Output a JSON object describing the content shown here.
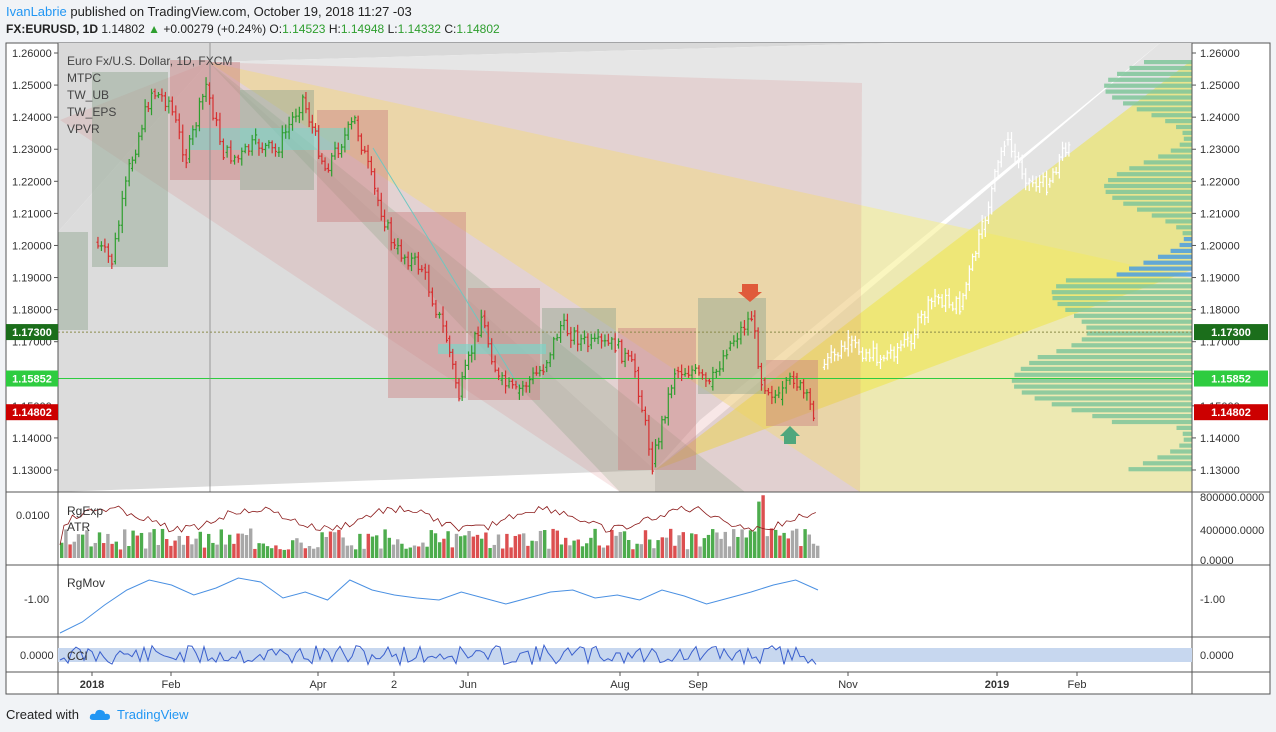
{
  "header": {
    "author": "IvanLabrie",
    "published": "published on TradingView.com, October 19, 2018 11:27 -03",
    "symbol": "FX:EURUSD, 1D",
    "last": "1.14802",
    "change": "+0.00279 (+0.24%)",
    "o_label": "O:",
    "o": "1.14523",
    "h_label": "H:",
    "h": "1.14948",
    "l_label": "L:",
    "l": "1.14332",
    "c_label": "C:",
    "c": "1.14802"
  },
  "legend": [
    "Euro Fx/U.S. Dollar, 1D, FXCM",
    "MTPC",
    "TW_UB",
    "TW_EPS",
    "VPVR"
  ],
  "footer": {
    "created_with": "Created with",
    "brand": "TradingView"
  },
  "colors": {
    "up": "#2e9e2e",
    "down": "#d63031",
    "blue": "#2196f3",
    "price_green": "#2ecc40",
    "price_red": "#cc0000",
    "price_dark": "#1b6e1b"
  },
  "chart_data": {
    "type": "candlestick",
    "symbol": "EURUSD",
    "timeframe": "1D",
    "price_axis": {
      "ticks": [
        "1.26000",
        "1.25000",
        "1.24000",
        "1.23000",
        "1.22000",
        "1.21000",
        "1.20000",
        "1.19000",
        "1.18000",
        "1.17000",
        "1.16000",
        "1.15000",
        "1.14000",
        "1.13000"
      ],
      "ylim": [
        1.125,
        1.262
      ]
    },
    "price_labels": [
      {
        "value": 1.173,
        "text": "1.17300",
        "kind": "dark"
      },
      {
        "value": 1.15852,
        "text": "1.15852",
        "kind": "green"
      },
      {
        "value": 1.14802,
        "text": "1.14802",
        "kind": "red"
      }
    ],
    "time_axis": [
      "2018",
      "Feb",
      "Apr",
      "2",
      "Jun",
      "Aug",
      "Sep",
      "Nov",
      "2019",
      "Feb"
    ],
    "ohlc_path": [
      [
        "2018-01-02",
        1.201
      ],
      [
        "2018-01-09",
        1.195
      ],
      [
        "2018-01-16",
        1.224
      ],
      [
        "2018-01-25",
        1.248
      ],
      [
        "2018-02-01",
        1.245
      ],
      [
        "2018-02-08",
        1.227
      ],
      [
        "2018-02-16",
        1.25
      ],
      [
        "2018-02-23",
        1.229
      ],
      [
        "2018-03-01",
        1.227
      ],
      [
        "2018-03-08",
        1.232
      ],
      [
        "2018-03-16",
        1.229
      ],
      [
        "2018-03-27",
        1.246
      ],
      [
        "2018-04-05",
        1.224
      ],
      [
        "2018-04-17",
        1.239
      ],
      [
        "2018-04-25",
        1.217
      ],
      [
        "2018-05-03",
        1.199
      ],
      [
        "2018-05-14",
        1.193
      ],
      [
        "2018-05-24",
        1.171
      ],
      [
        "2018-05-29",
        1.153
      ],
      [
        "2018-06-07",
        1.178
      ],
      [
        "2018-06-14",
        1.158
      ],
      [
        "2018-06-21",
        1.154
      ],
      [
        "2018-07-02",
        1.162
      ],
      [
        "2018-07-09",
        1.175
      ],
      [
        "2018-07-20",
        1.169
      ],
      [
        "2018-07-31",
        1.169
      ],
      [
        "2018-08-08",
        1.161
      ],
      [
        "2018-08-15",
        1.132
      ],
      [
        "2018-08-24",
        1.161
      ],
      [
        "2018-08-31",
        1.161
      ],
      [
        "2018-09-07",
        1.156
      ],
      [
        "2018-09-14",
        1.168
      ],
      [
        "2018-09-24",
        1.178
      ],
      [
        "2018-09-28",
        1.158
      ],
      [
        "2018-10-05",
        1.152
      ],
      [
        "2018-10-11",
        1.159
      ],
      [
        "2018-10-19",
        1.148
      ]
    ],
    "projection_path": [
      [
        "2018-10-22",
        1.162
      ],
      [
        "2018-11-02",
        1.169
      ],
      [
        "2018-11-15",
        1.165
      ],
      [
        "2018-11-26",
        1.17
      ],
      [
        "2018-12-07",
        1.184
      ],
      [
        "2018-12-17",
        1.181
      ],
      [
        "2018-12-26",
        1.205
      ],
      [
        "2019-01-04",
        1.233
      ],
      [
        "2019-01-14",
        1.22
      ],
      [
        "2019-01-21",
        1.219
      ],
      [
        "2019-01-30",
        1.233
      ]
    ],
    "indicators": [
      {
        "name": "RgExp",
        "axis_ticks": [
          "0.0100"
        ]
      },
      {
        "name": "ATR",
        "axis_ticks": [
          "800000.0000",
          "400000.0000",
          "0.0000"
        ]
      },
      {
        "name": "RgMov",
        "axis_ticks": [
          "-1.00"
        ]
      },
      {
        "name": "CCI",
        "axis_ticks": [
          "0.0000"
        ]
      }
    ],
    "grid": true
  }
}
